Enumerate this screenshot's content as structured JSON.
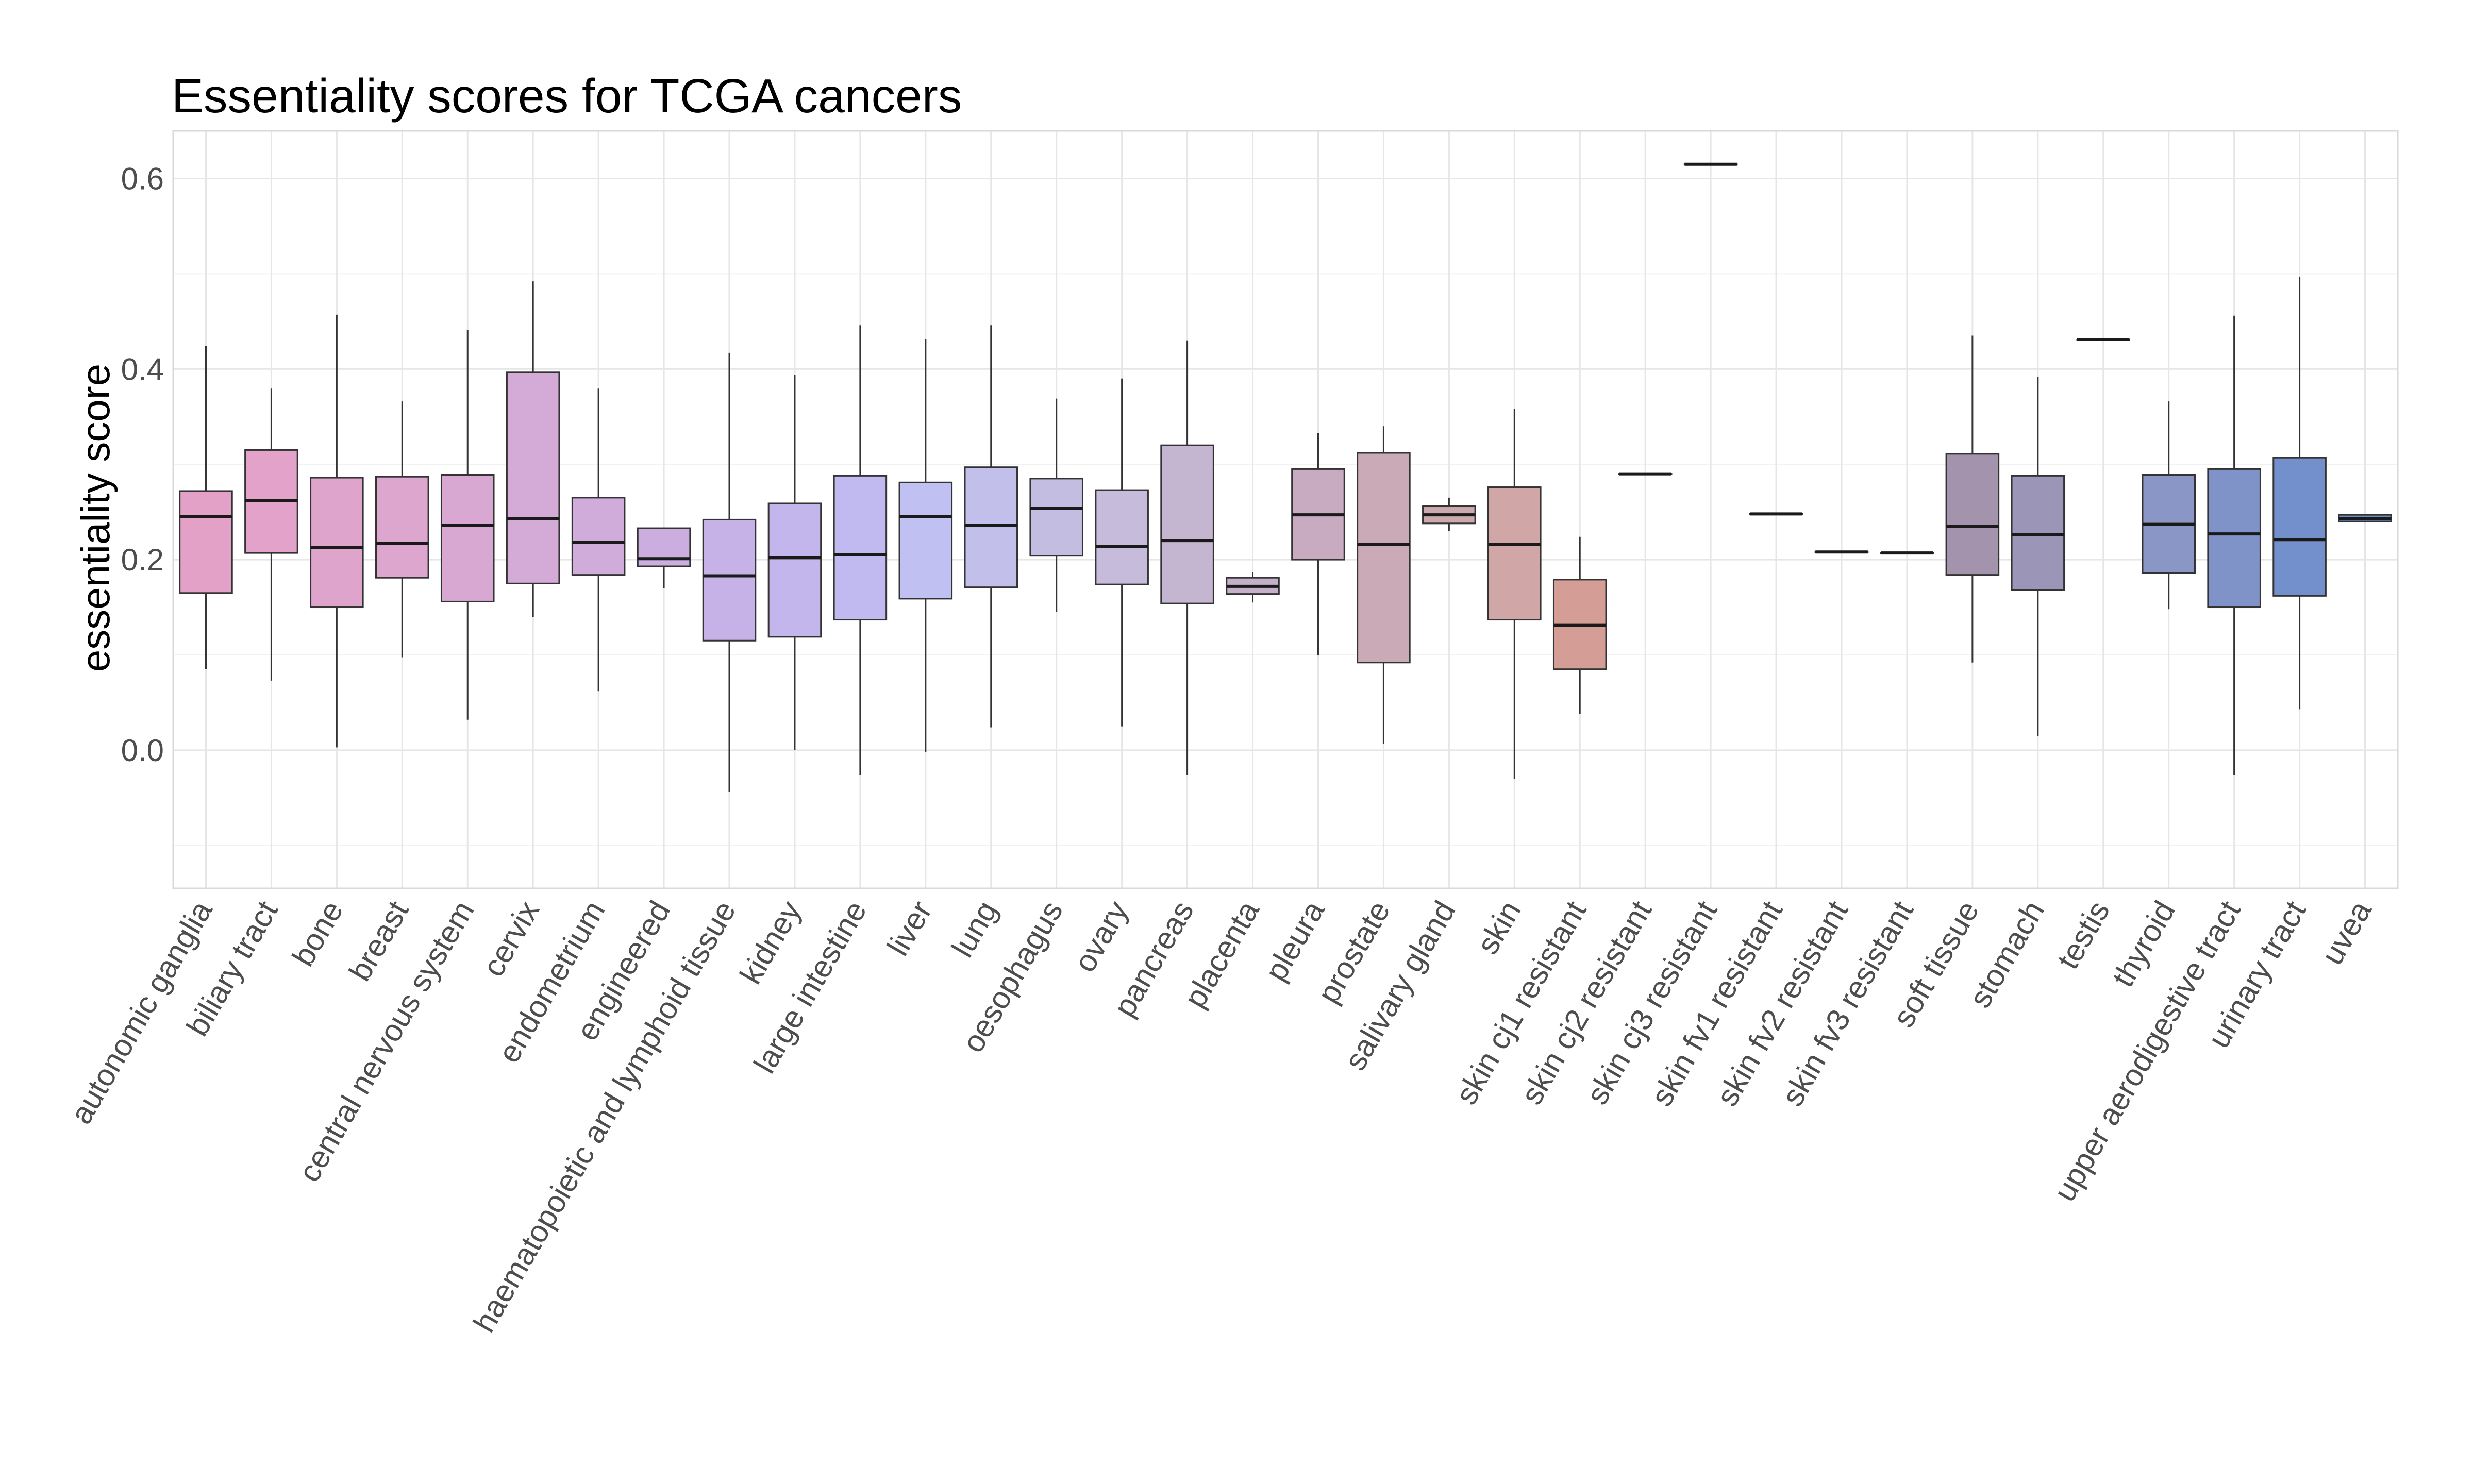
{
  "chart_data": {
    "type": "boxplot",
    "title": "Essentiality scores for TCGA cancers",
    "xlabel": "",
    "ylabel": "essentiality score",
    "ylim": [
      -0.145,
      0.65
    ],
    "y_ticks": [
      "0.0",
      "0.2",
      "0.4",
      "0.6"
    ],
    "y_tick_values": [
      0.0,
      0.2,
      0.4,
      0.6
    ],
    "grid": true,
    "legend": "none",
    "categories": [
      "autonomic ganglia",
      "biliary tract",
      "bone",
      "breast",
      "central nervous system",
      "cervix",
      "endometrium",
      "engineered",
      "haematopoietic and lymphoid tissue",
      "kidney",
      "large intestine",
      "liver",
      "lung",
      "oesophagus",
      "ovary",
      "pancreas",
      "placenta",
      "pleura",
      "prostate",
      "salivary gland",
      "skin",
      "skin cj1 resistant",
      "skin cj2 resistant",
      "skin cj3 resistant",
      "skin fv1 resistant",
      "skin fv2 resistant",
      "skin fv3 resistant",
      "soft tissue",
      "stomach",
      "testis",
      "thyroid",
      "upper aerodigestive tract",
      "urinary tract",
      "uvea"
    ],
    "boxes": [
      {
        "min": 0.085,
        "q1": 0.165,
        "median": 0.245,
        "q3": 0.272,
        "max": 0.424,
        "color": "#e3a1c8"
      },
      {
        "min": 0.073,
        "q1": 0.207,
        "median": 0.262,
        "q3": 0.315,
        "max": 0.38,
        "color": "#e2a2ca"
      },
      {
        "min": 0.003,
        "q1": 0.15,
        "median": 0.213,
        "q3": 0.286,
        "max": 0.457,
        "color": "#dea4cc"
      },
      {
        "min": 0.097,
        "q1": 0.181,
        "median": 0.217,
        "q3": 0.287,
        "max": 0.366,
        "color": "#dca6ce"
      },
      {
        "min": 0.032,
        "q1": 0.156,
        "median": 0.236,
        "q3": 0.289,
        "max": 0.441,
        "color": "#d8a8d2"
      },
      {
        "min": 0.14,
        "q1": 0.175,
        "median": 0.243,
        "q3": 0.397,
        "max": 0.492,
        "color": "#d4aad6"
      },
      {
        "min": 0.062,
        "q1": 0.184,
        "median": 0.218,
        "q3": 0.265,
        "max": 0.38,
        "color": "#d0acda"
      },
      {
        "min": 0.17,
        "q1": 0.193,
        "median": 0.201,
        "q3": 0.233,
        "max": 0.233,
        "color": "#cbaedf"
      },
      {
        "min": -0.044,
        "q1": 0.115,
        "median": 0.183,
        "q3": 0.242,
        "max": 0.417,
        "color": "#c6b2e6"
      },
      {
        "min": 0.0,
        "q1": 0.119,
        "median": 0.202,
        "q3": 0.259,
        "max": 0.394,
        "color": "#c2b6ec"
      },
      {
        "min": -0.026,
        "q1": 0.137,
        "median": 0.205,
        "q3": 0.288,
        "max": 0.446,
        "color": "#c0baf0"
      },
      {
        "min": -0.002,
        "q1": 0.159,
        "median": 0.245,
        "q3": 0.281,
        "max": 0.432,
        "color": "#c0c0f2"
      },
      {
        "min": 0.024,
        "q1": 0.171,
        "median": 0.236,
        "q3": 0.297,
        "max": 0.446,
        "color": "#c2bfea"
      },
      {
        "min": 0.145,
        "q1": 0.204,
        "median": 0.254,
        "q3": 0.285,
        "max": 0.369,
        "color": "#c4bde2"
      },
      {
        "min": 0.025,
        "q1": 0.174,
        "median": 0.214,
        "q3": 0.273,
        "max": 0.39,
        "color": "#c6bbda"
      },
      {
        "min": -0.026,
        "q1": 0.154,
        "median": 0.22,
        "q3": 0.32,
        "max": 0.43,
        "color": "#c4b6d0"
      },
      {
        "min": 0.155,
        "q1": 0.164,
        "median": 0.172,
        "q3": 0.181,
        "max": 0.187,
        "color": "#c4b0c8"
      },
      {
        "min": 0.1,
        "q1": 0.2,
        "median": 0.247,
        "q3": 0.295,
        "max": 0.333,
        "color": "#c8abc0"
      },
      {
        "min": 0.007,
        "q1": 0.092,
        "median": 0.216,
        "q3": 0.312,
        "max": 0.34,
        "color": "#caaab6"
      },
      {
        "min": 0.23,
        "q1": 0.238,
        "median": 0.247,
        "q3": 0.256,
        "max": 0.265,
        "color": "#cca9ae"
      },
      {
        "min": -0.03,
        "q1": 0.137,
        "median": 0.216,
        "q3": 0.276,
        "max": 0.358,
        "color": "#d0a6a6"
      },
      {
        "min": 0.038,
        "q1": 0.085,
        "median": 0.131,
        "q3": 0.179,
        "max": 0.224,
        "color": "#d49e96"
      },
      {
        "min": 0.29,
        "q1": 0.29,
        "median": 0.29,
        "q3": 0.29,
        "max": 0.29,
        "color": "#c8a0a0"
      },
      {
        "min": 0.615,
        "q1": 0.615,
        "median": 0.615,
        "q3": 0.615,
        "max": 0.615,
        "color": "#c4a0a4"
      },
      {
        "min": 0.248,
        "q1": 0.248,
        "median": 0.248,
        "q3": 0.248,
        "max": 0.248,
        "color": "#bea0a8"
      },
      {
        "min": 0.208,
        "q1": 0.208,
        "median": 0.208,
        "q3": 0.208,
        "max": 0.208,
        "color": "#b8a0ac"
      },
      {
        "min": 0.207,
        "q1": 0.207,
        "median": 0.207,
        "q3": 0.207,
        "max": 0.207,
        "color": "#b09eb0"
      },
      {
        "min": 0.092,
        "q1": 0.184,
        "median": 0.235,
        "q3": 0.311,
        "max": 0.435,
        "color": "#a493ad"
      },
      {
        "min": 0.015,
        "q1": 0.168,
        "median": 0.226,
        "q3": 0.288,
        "max": 0.392,
        "color": "#9b96b8"
      },
      {
        "min": 0.431,
        "q1": 0.431,
        "median": 0.431,
        "q3": 0.431,
        "max": 0.431,
        "color": "#9096c0"
      },
      {
        "min": 0.148,
        "q1": 0.186,
        "median": 0.237,
        "q3": 0.289,
        "max": 0.366,
        "color": "#8a96c6"
      },
      {
        "min": -0.026,
        "q1": 0.15,
        "median": 0.227,
        "q3": 0.295,
        "max": 0.456,
        "color": "#7f93c8"
      },
      {
        "min": 0.043,
        "q1": 0.162,
        "median": 0.221,
        "q3": 0.307,
        "max": 0.497,
        "color": "#7490cc"
      },
      {
        "min": 0.24,
        "q1": 0.24,
        "median": 0.243,
        "q3": 0.247,
        "max": 0.247,
        "color": "#6a8fd0"
      }
    ]
  }
}
